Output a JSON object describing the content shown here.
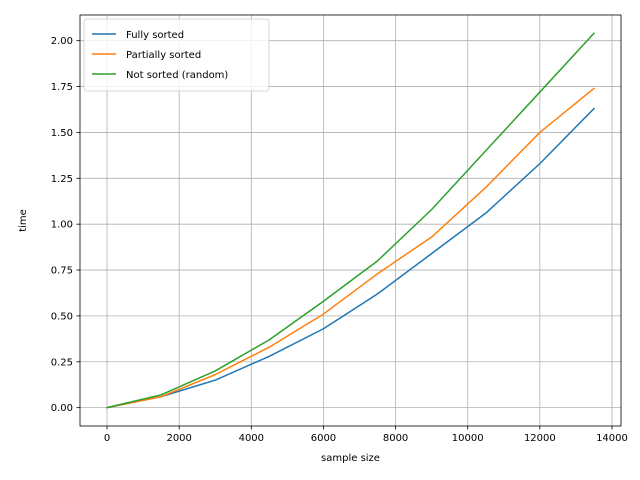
{
  "chart_data": {
    "type": "line",
    "title": "",
    "xlabel": "sample size",
    "ylabel": "time",
    "xlim": [
      -750,
      14250
    ],
    "ylim": [
      -0.1,
      2.14
    ],
    "xticks": [
      0,
      2000,
      4000,
      6000,
      8000,
      10000,
      12000,
      14000
    ],
    "xtick_labels": [
      "0",
      "2000",
      "4000",
      "6000",
      "8000",
      "10000",
      "12000",
      "14000"
    ],
    "yticks": [
      0.0,
      0.25,
      0.5,
      0.75,
      1.0,
      1.25,
      1.5,
      1.75,
      2.0
    ],
    "ytick_labels": [
      "0.00",
      "0.25",
      "0.50",
      "0.75",
      "1.00",
      "1.25",
      "1.50",
      "1.75",
      "2.00"
    ],
    "grid": true,
    "legend_position": "top-left",
    "x": [
      0,
      1500,
      3000,
      4500,
      6000,
      7500,
      9000,
      10500,
      12000,
      13500
    ],
    "series": [
      {
        "name": "Fully sorted",
        "color": "#1f77b4",
        "values": [
          0.0,
          0.06,
          0.15,
          0.28,
          0.43,
          0.62,
          0.84,
          1.06,
          1.33,
          1.63
        ]
      },
      {
        "name": "Partially sorted",
        "color": "#ff7f0e",
        "values": [
          0.0,
          0.06,
          0.18,
          0.33,
          0.51,
          0.73,
          0.93,
          1.2,
          1.5,
          1.74
        ]
      },
      {
        "name": "Not sorted (random)",
        "color": "#2ca02c",
        "values": [
          0.0,
          0.07,
          0.2,
          0.37,
          0.58,
          0.8,
          1.08,
          1.4,
          1.72,
          2.04
        ]
      }
    ]
  }
}
